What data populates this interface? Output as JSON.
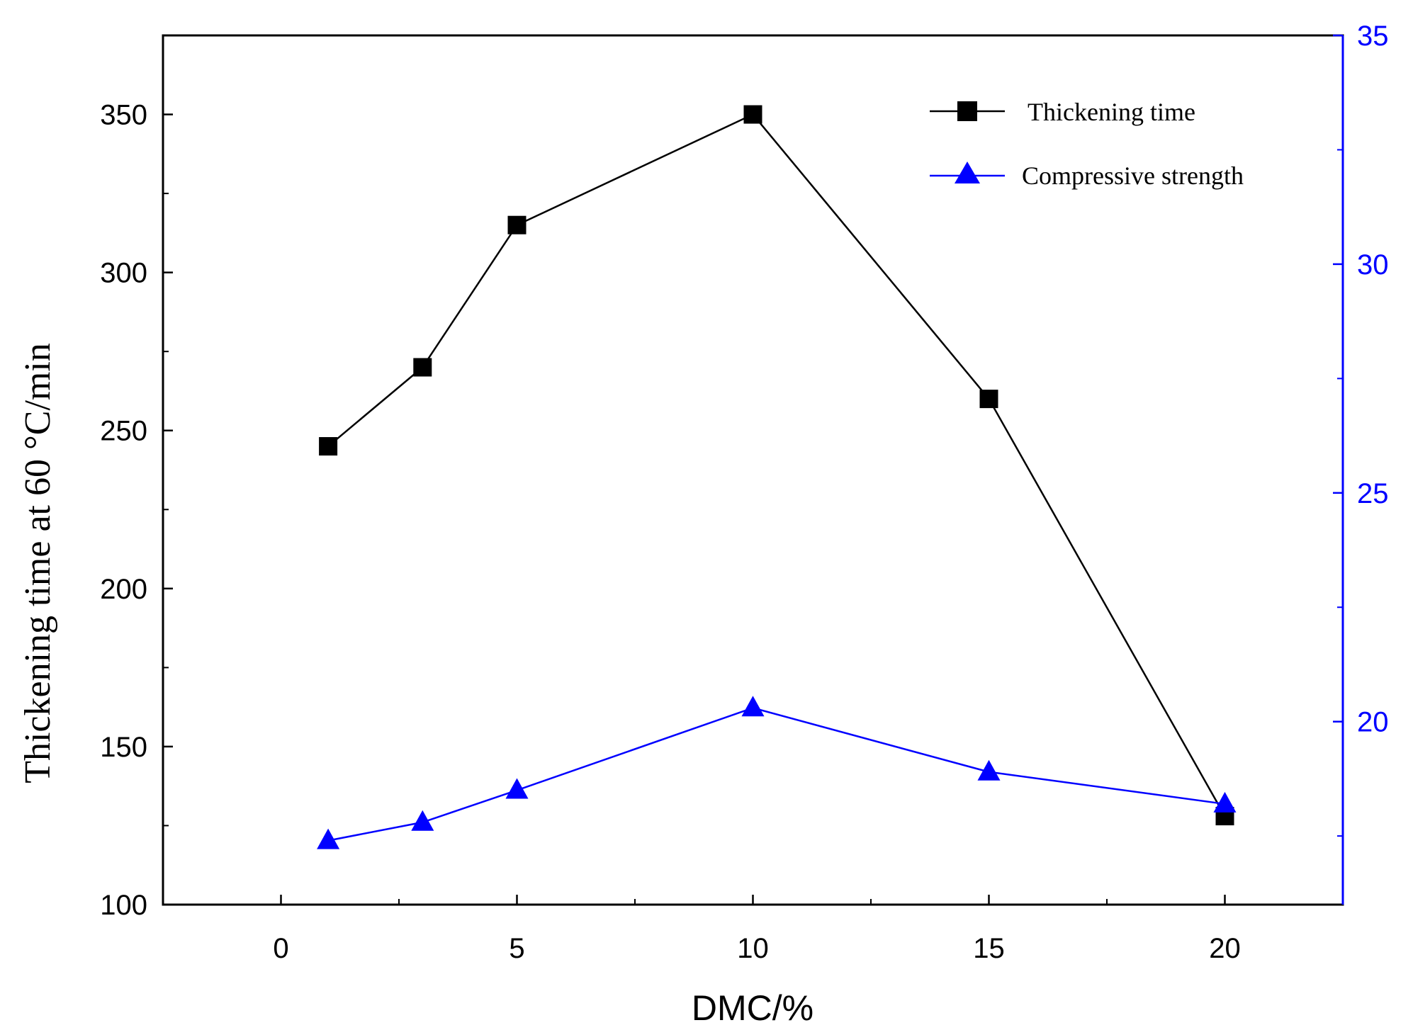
{
  "chart_data": {
    "type": "line",
    "title": "",
    "xlabel": "DMC/%",
    "ylabel_left": "Thickening time at 60 °C/min",
    "ylabel_right": "",
    "xlim": [
      -2.5,
      22.5
    ],
    "ylim_left": [
      100,
      375
    ],
    "ylim_right": [
      16,
      35
    ],
    "x_ticks": [
      0,
      5,
      10,
      15,
      20
    ],
    "x_tick_labels": [
      "0",
      "5",
      "10",
      "15",
      "20"
    ],
    "y_left_ticks": [
      100,
      150,
      200,
      250,
      300,
      350
    ],
    "y_left_tick_labels": [
      "100",
      "150",
      "200",
      "250",
      "300",
      "350"
    ],
    "y_right_ticks": [
      20,
      25,
      30,
      35
    ],
    "y_right_tick_labels": [
      "20",
      "25",
      "30",
      "35"
    ],
    "legend_position": "top-right",
    "series": [
      {
        "name": "Thickening time",
        "axis": "left",
        "color": "#000000",
        "marker": "square",
        "x": [
          1,
          3,
          5,
          10,
          15,
          20
        ],
        "y": [
          245,
          270,
          315,
          350,
          260,
          128
        ]
      },
      {
        "name": "Compressive strength",
        "axis": "right",
        "color": "#0000ff",
        "marker": "triangle",
        "x": [
          1,
          3,
          5,
          10,
          15,
          20
        ],
        "y": [
          17.4,
          17.8,
          18.5,
          20.3,
          18.9,
          18.2
        ]
      }
    ]
  }
}
